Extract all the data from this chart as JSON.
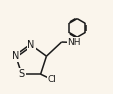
{
  "bg_color": "#faf5ec",
  "bond_color": "#1a1a1a",
  "font_size_atom": 7.0,
  "linewidth": 1.1,
  "figsize": [
    1.14,
    0.94
  ],
  "dpi": 100,
  "xlim": [
    0.0,
    1.05
  ],
  "ylim": [
    0.05,
    1.0
  ]
}
